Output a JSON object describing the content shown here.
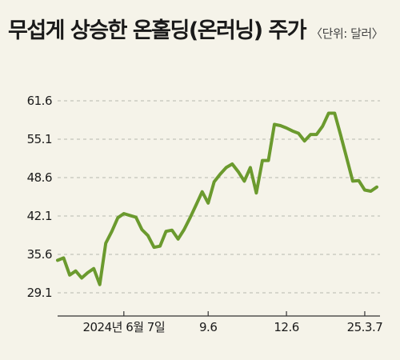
{
  "header": {
    "title": "무섭게 상승한 온홀딩(온러닝) 주가",
    "unit": "〈단위: 달러〉"
  },
  "colors": {
    "background": "#f5f3e9",
    "line": "#6b9a2e",
    "grid": "#b8b8b0",
    "axis": "#333333"
  },
  "chart_data": {
    "type": "line",
    "title": "무섭게 상승한 온홀딩(온러닝) 주가",
    "unit": "〈단위: 달러〉",
    "ylim": [
      29.1,
      61.6
    ],
    "y_ticks": [
      "61.6",
      "55.1",
      "48.6",
      "42.1",
      "35.6",
      "29.1"
    ],
    "x_ticks": [
      {
        "label": "2024년 6월 7일",
        "index": 11
      },
      {
        "label": "9.6",
        "index": 25
      },
      {
        "label": "12.6",
        "index": 38
      },
      {
        "label": "25.3.7",
        "index": 51
      }
    ],
    "grid": true,
    "series": [
      {
        "values": [
          34.6,
          35.0,
          32.1,
          32.8,
          31.6,
          32.5,
          33.2,
          30.5,
          37.5,
          39.5,
          41.8,
          42.5,
          42.2,
          41.9,
          39.8,
          38.8,
          36.8,
          37.0,
          39.5,
          39.7,
          38.2,
          39.8,
          41.8,
          44.0,
          46.2,
          44.3,
          47.9,
          49.2,
          50.3,
          50.9,
          49.6,
          48.0,
          50.3,
          46.0,
          51.5,
          51.5,
          57.6,
          57.4,
          57.0,
          56.5,
          56.1,
          54.8,
          55.9,
          55.9,
          57.3,
          59.5,
          59.5,
          55.8,
          51.9,
          48.0,
          48.1,
          46.5,
          46.3,
          47.0
        ]
      }
    ]
  }
}
